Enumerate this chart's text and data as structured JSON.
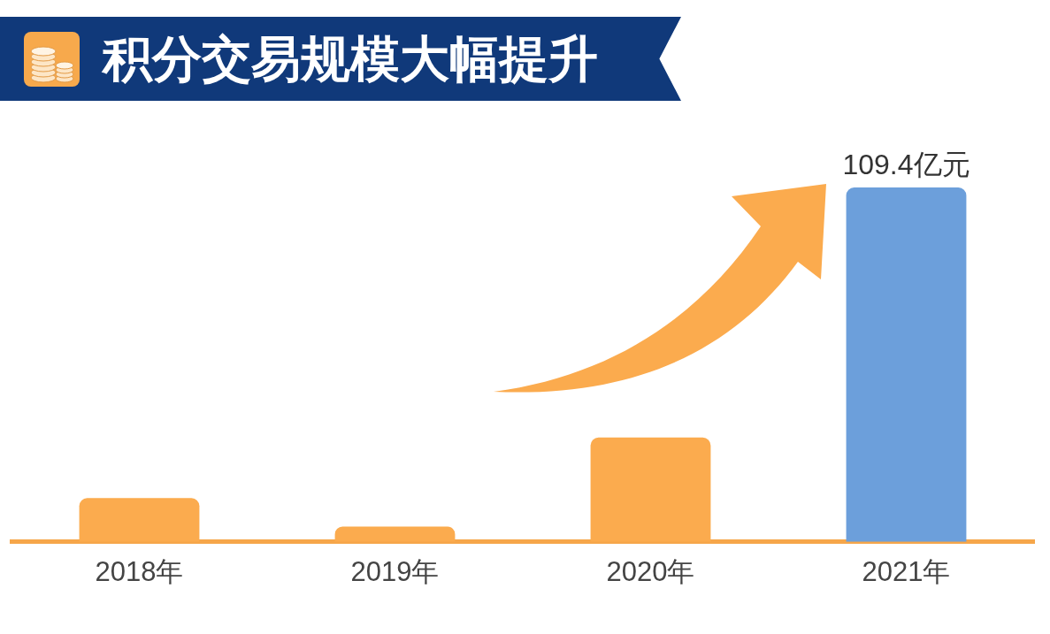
{
  "chart_data": {
    "type": "bar",
    "title": "积分交易规模大幅提升",
    "categories": [
      "2018年",
      "2019年",
      "2020年",
      "2021年"
    ],
    "values": [
      13.5,
      4.7,
      32.2,
      109.4
    ],
    "colors": [
      "#fbab4e",
      "#fbab4e",
      "#fbab4e",
      "#6c9fdb"
    ],
    "value_labels": [
      null,
      null,
      null,
      "109.4亿元"
    ]
  }
}
